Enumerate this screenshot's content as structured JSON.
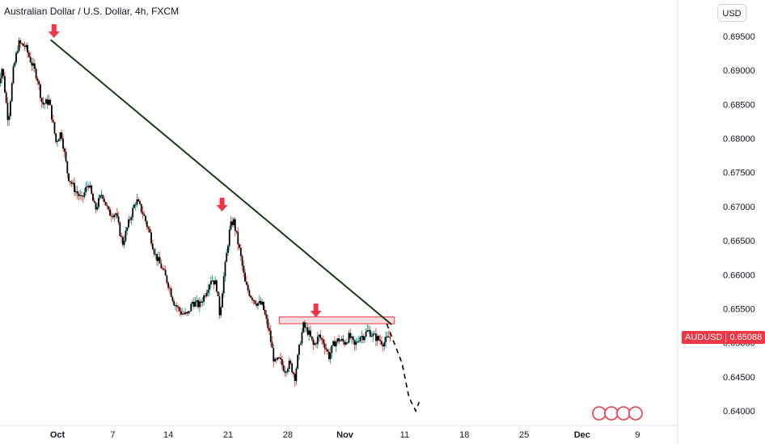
{
  "header": {
    "title": "Australian Dollar / U.S. Dollar, 4h, FXCM",
    "currency_button": "USD"
  },
  "price_tag": {
    "symbol": "AUDUSD",
    "value": "0.65088"
  },
  "colors": {
    "up": "#26a69a",
    "down": "#ef5350",
    "candle_body": "#000000",
    "trendline": "#1b3a1b",
    "arrow": "#f23645",
    "zone": "#f7c5c9"
  },
  "chart_data": {
    "type": "candlestick",
    "title": "Australian Dollar / U.S. Dollar, 4h, FXCM",
    "ylim": [
      0.6385,
      0.6975
    ],
    "y_ticks": [
      "0.69500",
      "0.69000",
      "0.68500",
      "0.68000",
      "0.67500",
      "0.67000",
      "0.66500",
      "0.66000",
      "0.65500",
      "0.65000",
      "0.64500",
      "0.64000"
    ],
    "x_ticks": [
      {
        "label": "Oct",
        "bold": true
      },
      {
        "label": "7",
        "bold": false
      },
      {
        "label": "14",
        "bold": false
      },
      {
        "label": "21",
        "bold": false
      },
      {
        "label": "28",
        "bold": false
      },
      {
        "label": "Nov",
        "bold": true
      },
      {
        "label": "11",
        "bold": false
      },
      {
        "label": "18",
        "bold": false
      },
      {
        "label": "25",
        "bold": false
      },
      {
        "label": "Dec",
        "bold": true
      },
      {
        "label": "9",
        "bold": false
      }
    ],
    "x_tick_days": [
      0,
      6.5,
      13,
      20,
      27,
      33.7,
      40.7,
      47.7,
      54.7,
      61.5,
      68
    ],
    "anchors": [
      [
        -7,
        0.6865
      ],
      [
        -6.3,
        0.6905
      ],
      [
        -5.6,
        0.6825
      ],
      [
        -5.0,
        0.69
      ],
      [
        -4.4,
        0.694
      ],
      [
        -3.6,
        0.6935
      ],
      [
        -3.0,
        0.6915
      ],
      [
        -2.2,
        0.689
      ],
      [
        -1.6,
        0.685
      ],
      [
        -0.8,
        0.6855
      ],
      [
        0,
        0.6795
      ],
      [
        0.6,
        0.681
      ],
      [
        1.4,
        0.6745
      ],
      [
        2.2,
        0.6725
      ],
      [
        3.0,
        0.671
      ],
      [
        3.8,
        0.6735
      ],
      [
        4.6,
        0.6695
      ],
      [
        5.4,
        0.672
      ],
      [
        6.2,
        0.669
      ],
      [
        7.0,
        0.669
      ],
      [
        7.8,
        0.6645
      ],
      [
        8.6,
        0.668
      ],
      [
        9.4,
        0.671
      ],
      [
        10.2,
        0.669
      ],
      [
        11.0,
        0.666
      ],
      [
        11.6,
        0.663
      ],
      [
        12.4,
        0.661
      ],
      [
        13.2,
        0.6585
      ],
      [
        13.8,
        0.656
      ],
      [
        14.6,
        0.6545
      ],
      [
        15.4,
        0.654
      ],
      [
        16.0,
        0.656
      ],
      [
        16.8,
        0.6555
      ],
      [
        17.4,
        0.657
      ],
      [
        18.2,
        0.6595
      ],
      [
        18.8,
        0.6585
      ],
      [
        19.2,
        0.654
      ],
      [
        19.6,
        0.659
      ],
      [
        20.0,
        0.663
      ],
      [
        20.4,
        0.667
      ],
      [
        20.8,
        0.668
      ],
      [
        21.2,
        0.6655
      ],
      [
        21.6,
        0.663
      ],
      [
        22.2,
        0.6585
      ],
      [
        22.8,
        0.657
      ],
      [
        23.4,
        0.656
      ],
      [
        24.2,
        0.6555
      ],
      [
        25.0,
        0.6515
      ],
      [
        25.6,
        0.647
      ],
      [
        26.2,
        0.6475
      ],
      [
        26.8,
        0.646
      ],
      [
        27.4,
        0.647
      ],
      [
        28.0,
        0.645
      ],
      [
        28.6,
        0.65
      ],
      [
        29.0,
        0.6525
      ],
      [
        29.6,
        0.6515
      ],
      [
        30.2,
        0.6495
      ],
      [
        30.8,
        0.651
      ],
      [
        31.4,
        0.65
      ],
      [
        32.0,
        0.648
      ],
      [
        32.6,
        0.65
      ],
      [
        33.2,
        0.6505
      ],
      [
        33.8,
        0.65
      ],
      [
        34.4,
        0.651
      ],
      [
        35.0,
        0.6495
      ],
      [
        35.6,
        0.651
      ],
      [
        36.0,
        0.651
      ],
      [
        36.6,
        0.6518
      ],
      [
        37.2,
        0.651
      ],
      [
        37.8,
        0.6505
      ],
      [
        38.4,
        0.65
      ],
      [
        39.0,
        0.6508
      ]
    ],
    "trendline": [
      [
        -0.8,
        0.6945
      ],
      [
        38.6,
        0.6528
      ]
    ],
    "resistance_zone": [
      0.6538,
      0.6528
    ],
    "arrows_days": [
      -0.4,
      19.3,
      30.3
    ],
    "projection": [
      [
        38.6,
        0.6528
      ],
      [
        40.4,
        0.647
      ],
      [
        41.2,
        0.642
      ],
      [
        42.0,
        0.64
      ],
      [
        42.4,
        0.6413
      ]
    ]
  }
}
